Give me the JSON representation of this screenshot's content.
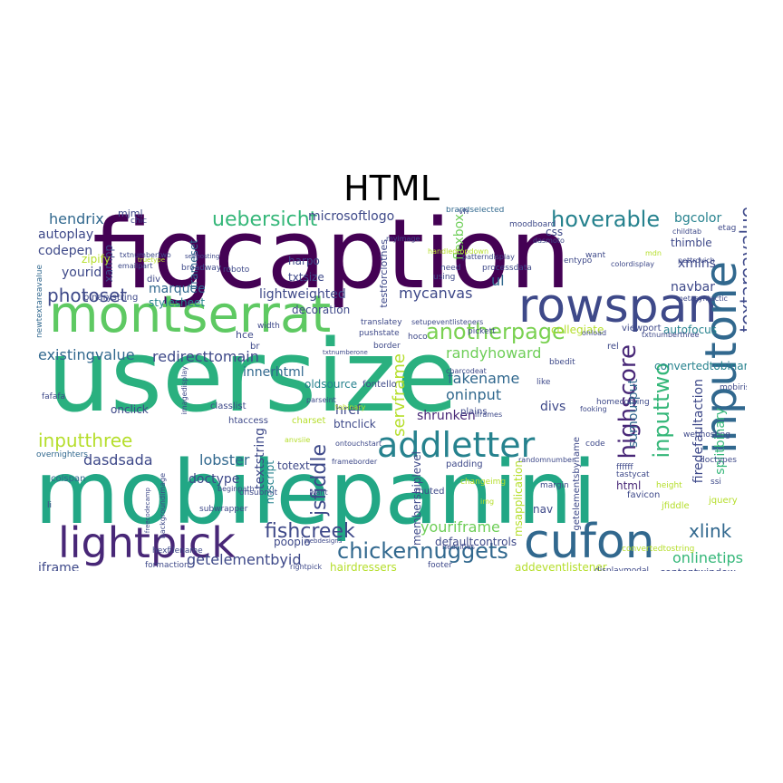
{
  "title": "HTML",
  "colors": {
    "background": "#ffffff",
    "palette": [
      "#440154",
      "#482777",
      "#3e4989",
      "#31688e",
      "#26828e",
      "#1f9e89",
      "#35b779",
      "#6ece58",
      "#b5de2b",
      "#fde725"
    ]
  },
  "words": [
    {
      "text": "figcaption",
      "color": "#440154"
    },
    {
      "text": "usersize",
      "color": "#2ab07f"
    },
    {
      "text": "mobilepanini",
      "color": "#22a785"
    },
    {
      "text": "rowspan",
      "color": "#3e4989"
    },
    {
      "text": "montserrat",
      "color": "#5ec962"
    },
    {
      "text": "inputone",
      "color": "#31688e"
    },
    {
      "text": "lightpick",
      "color": "#482777"
    },
    {
      "text": "cufon",
      "color": "#31688e"
    },
    {
      "text": "addletter",
      "color": "#26828e"
    },
    {
      "text": "hoverable",
      "color": "#26828e"
    },
    {
      "text": "uebersicht",
      "color": "#35b779"
    },
    {
      "text": "chickennuggets",
      "color": "#31688e"
    },
    {
      "text": "anotherpage",
      "color": "#7ad151"
    },
    {
      "text": "fishcreek",
      "color": "#3e4989"
    },
    {
      "text": "photoset",
      "color": "#3e4989"
    },
    {
      "text": "highscore",
      "color": "#482777"
    },
    {
      "text": "inputtwo",
      "color": "#35b779"
    },
    {
      "text": "textareavalue",
      "color": "#3e4989"
    },
    {
      "text": "jsfiddle",
      "color": "#3e4989"
    },
    {
      "text": "servframe",
      "color": "#b5de2b"
    },
    {
      "text": "inputthree",
      "color": "#b5de2b"
    },
    {
      "text": "xlink",
      "color": "#31688e"
    },
    {
      "text": "onlinetips",
      "color": "#35b779"
    },
    {
      "text": "getelementbyid",
      "color": "#3e4989"
    },
    {
      "text": "youriframe",
      "color": "#6ece58"
    },
    {
      "text": "randyhoward",
      "color": "#6ece58"
    },
    {
      "text": "redirecttomain",
      "color": "#3e4989"
    },
    {
      "text": "existingvalue",
      "color": "#31688e"
    },
    {
      "text": "innerhtml",
      "color": "#31688e"
    },
    {
      "text": "mycanvas",
      "color": "#3e4989"
    },
    {
      "text": "lightweighted",
      "color": "#3e4989"
    },
    {
      "text": "microsoftlogo",
      "color": "#3e4989"
    },
    {
      "text": "hendrix",
      "color": "#31688e"
    },
    {
      "text": "autoplay",
      "color": "#3e4989"
    },
    {
      "text": "codepen",
      "color": "#3e4989"
    },
    {
      "text": "yourid",
      "color": "#3e4989"
    },
    {
      "text": "marquee",
      "color": "#31688e"
    },
    {
      "text": "stylesheet",
      "color": "#26828e"
    },
    {
      "text": "fakename",
      "color": "#31688e"
    },
    {
      "text": "oninput",
      "color": "#31688e"
    },
    {
      "text": "shrunken",
      "color": "#482777"
    },
    {
      "text": "divs",
      "color": "#3e4989"
    },
    {
      "text": "href",
      "color": "#3e4989"
    },
    {
      "text": "btnclick",
      "color": "#3e4989"
    },
    {
      "text": "oldsource",
      "color": "#26828e"
    },
    {
      "text": "decoration",
      "color": "#3e4989"
    },
    {
      "text": "lobster",
      "color": "#31688e"
    },
    {
      "text": "doctype",
      "color": "#3e4989"
    },
    {
      "text": "dasdsada",
      "color": "#3e4989"
    },
    {
      "text": "onclick",
      "color": "#3e4989"
    },
    {
      "text": "navbar",
      "color": "#3e4989"
    },
    {
      "text": "xmlns",
      "color": "#3e4989"
    },
    {
      "text": "bgcolor",
      "color": "#26828e"
    },
    {
      "text": "sumoutput",
      "color": "#31688e"
    },
    {
      "text": "convertedtobinary",
      "color": "#26828e"
    },
    {
      "text": "autofocus",
      "color": "#26828e"
    },
    {
      "text": "firedefaultaction",
      "color": "#3e4989"
    },
    {
      "text": "splitbinary",
      "color": "#35b779"
    },
    {
      "text": "textstring",
      "color": "#3e4989"
    },
    {
      "text": "noscript",
      "color": "#26828e"
    },
    {
      "text": "totext",
      "color": "#3e4989"
    },
    {
      "text": "defaultcontrols",
      "color": "#3e4989"
    },
    {
      "text": "hairdressers",
      "color": "#b5de2b"
    },
    {
      "text": "addeventlistener",
      "color": "#b5de2b"
    },
    {
      "text": "contentwindow",
      "color": "#3e4989"
    },
    {
      "text": "iframe",
      "color": "#3e4989"
    },
    {
      "text": "flexbox",
      "color": "#6ece58"
    },
    {
      "text": "ul",
      "color": "#31688e"
    },
    {
      "text": "harpo",
      "color": "#3e4989"
    },
    {
      "text": "txtsize",
      "color": "#3e4989"
    },
    {
      "text": "xampp",
      "color": "#3e4989"
    },
    {
      "text": "mjml",
      "color": "#3e4989"
    },
    {
      "text": "frameset",
      "color": "#31688e"
    },
    {
      "text": "zipify",
      "color": "#b5de2b"
    },
    {
      "text": "binarystring",
      "color": "#3e4989"
    },
    {
      "text": "collegiate",
      "color": "#b5de2b"
    },
    {
      "text": "html",
      "color": "#482777"
    },
    {
      "text": "nav",
      "color": "#3e4989"
    },
    {
      "text": "thimble",
      "color": "#3e4989"
    },
    {
      "text": "poopio",
      "color": "#3e4989"
    },
    {
      "text": "css",
      "color": "#3e4989"
    },
    {
      "text": "charset",
      "color": "#b5de2b"
    },
    {
      "text": "fontello",
      "color": "#3e4989"
    },
    {
      "text": "classlist",
      "color": "#3e4989"
    },
    {
      "text": "htaccess",
      "color": "#3e4989"
    },
    {
      "text": "colspan",
      "color": "#31688e"
    },
    {
      "text": "fafafa",
      "color": "#3e4989"
    },
    {
      "text": "overnighters",
      "color": "#31688e"
    },
    {
      "text": "newtextareavalue",
      "color": "#31688e"
    },
    {
      "text": "getelementsbyname",
      "color": "#3e4989"
    },
    {
      "text": "membershiplevel",
      "color": "#3e4989"
    },
    {
      "text": "msapplication",
      "color": "#b5de2b"
    },
    {
      "text": "testforclothes",
      "color": "#3e4989"
    },
    {
      "text": "entypo",
      "color": "#3e4989"
    },
    {
      "text": "viewport",
      "color": "#3e4989"
    },
    {
      "text": "homecoming",
      "color": "#3e4989"
    },
    {
      "text": "webhosting",
      "color": "#3e4989"
    },
    {
      "text": "doctypes",
      "color": "#3e4989"
    },
    {
      "text": "favicon",
      "color": "#3e4989"
    },
    {
      "text": "jquery",
      "color": "#b5de2b"
    },
    {
      "text": "formaction",
      "color": "#3e4989"
    },
    {
      "text": "footer",
      "color": "#3e4989"
    },
    {
      "text": "displaymodal",
      "color": "#3e4989"
    },
    {
      "text": "rightpick",
      "color": "#3e4989"
    },
    {
      "text": "mobirise",
      "color": "#3e4989"
    },
    {
      "text": "moodboard",
      "color": "#3e4989"
    },
    {
      "text": "brandselected",
      "color": "#31688e"
    },
    {
      "text": "processdata",
      "color": "#3e4989"
    },
    {
      "text": "roboto",
      "color": "#3e4989"
    },
    {
      "text": "broadway",
      "color": "#3e4989"
    },
    {
      "text": "chic",
      "color": "#3e4989"
    },
    {
      "text": "div",
      "color": "#3e4989"
    },
    {
      "text": "translatey",
      "color": "#3e4989"
    },
    {
      "text": "pushstate",
      "color": "#3e4989"
    },
    {
      "text": "setupeventlisteners",
      "color": "#3e4989"
    },
    {
      "text": "onsubmit",
      "color": "#3e4989"
    },
    {
      "text": "subwrapper",
      "color": "#3e4989"
    },
    {
      "text": "hce",
      "color": "#3e4989"
    },
    {
      "text": "border",
      "color": "#3e4989"
    },
    {
      "text": "plains",
      "color": "#3e4989"
    },
    {
      "text": "pickett",
      "color": "#3e4989"
    },
    {
      "text": "iframes",
      "color": "#3e4989"
    },
    {
      "text": "muted",
      "color": "#3e4989"
    },
    {
      "text": "padding",
      "color": "#3e4989"
    },
    {
      "text": "changeimg",
      "color": "#b5de2b"
    },
    {
      "text": "margin",
      "color": "#3e4989"
    },
    {
      "text": "tastycat",
      "color": "#3e4989"
    },
    {
      "text": "jfiddle",
      "color": "#b5de2b"
    },
    {
      "text": "ssi",
      "color": "#3e4989"
    },
    {
      "text": "convertedtostring",
      "color": "#b5de2b"
    },
    {
      "text": "hexfilename",
      "color": "#3e4989"
    },
    {
      "text": "frameborder",
      "color": "#3e4989"
    },
    {
      "text": "etag",
      "color": "#3e4989"
    },
    {
      "text": "childtab",
      "color": "#3e4989"
    },
    {
      "text": "pettrovich",
      "color": "#3e4989"
    },
    {
      "text": "bbedit",
      "color": "#3e4989"
    },
    {
      "text": "charcodeat",
      "color": "#3e4989"
    },
    {
      "text": "parseint",
      "color": "#3e4989"
    },
    {
      "text": "anvsiie",
      "color": "#b5de2b"
    },
    {
      "text": "ontouchstart",
      "color": "#3e4989"
    },
    {
      "text": "tobinary",
      "color": "#b5de2b"
    },
    {
      "text": "randomnumber",
      "color": "#3e4989"
    },
    {
      "text": "fooking",
      "color": "#3e4989"
    },
    {
      "text": "onload",
      "color": "#3e4989"
    },
    {
      "text": "txtnumberthree",
      "color": "#3e4989"
    },
    {
      "text": "metasyntactic",
      "color": "#3e4989"
    },
    {
      "text": "colordisplay",
      "color": "#3e4989"
    },
    {
      "text": "dasmoto",
      "color": "#3e4989"
    },
    {
      "text": "myimage",
      "color": "#3e4989"
    },
    {
      "text": "handledropdown",
      "color": "#b5de2b"
    },
    {
      "text": "patterndisplay",
      "color": "#3e4989"
    },
    {
      "text": "txtnumbertwo",
      "color": "#3e4989"
    },
    {
      "text": "emailpart",
      "color": "#3e4989"
    },
    {
      "text": "selfhosting",
      "color": "#3e4989"
    },
    {
      "text": "truetype",
      "color": "#b5de2b"
    },
    {
      "text": "txtnumberone",
      "color": "#3e4989"
    },
    {
      "text": "beginpath",
      "color": "#3e4989"
    },
    {
      "text": "backgroundimage",
      "color": "#3e4989"
    },
    {
      "text": "freecodecamp",
      "color": "#3e4989"
    },
    {
      "text": "imagedisplay",
      "color": "#3e4989"
    },
    {
      "text": "webdesigns",
      "color": "#3e4989"
    },
    {
      "text": "neocities",
      "color": "#3e4989"
    },
    {
      "text": "hoco",
      "color": "#3e4989"
    },
    {
      "text": "width",
      "color": "#3e4989"
    },
    {
      "text": "using",
      "color": "#3e4989"
    },
    {
      "text": "need",
      "color": "#3e4989"
    },
    {
      "text": "want",
      "color": "#3e4989"
    },
    {
      "text": "like",
      "color": "#3e4989"
    },
    {
      "text": "code",
      "color": "#3e4989"
    },
    {
      "text": "height",
      "color": "#b5de2b"
    },
    {
      "text": "rel",
      "color": "#3e4989"
    },
    {
      "text": "vh",
      "color": "#3e4989"
    },
    {
      "text": "br",
      "color": "#3e4989"
    },
    {
      "text": "ffffff",
      "color": "#3e4989"
    },
    {
      "text": "li",
      "color": "#3e4989"
    },
    {
      "text": "waht",
      "color": "#3e4989"
    },
    {
      "text": "img",
      "color": "#b5de2b"
    },
    {
      "text": "mdn",
      "color": "#b5de2b"
    }
  ]
}
